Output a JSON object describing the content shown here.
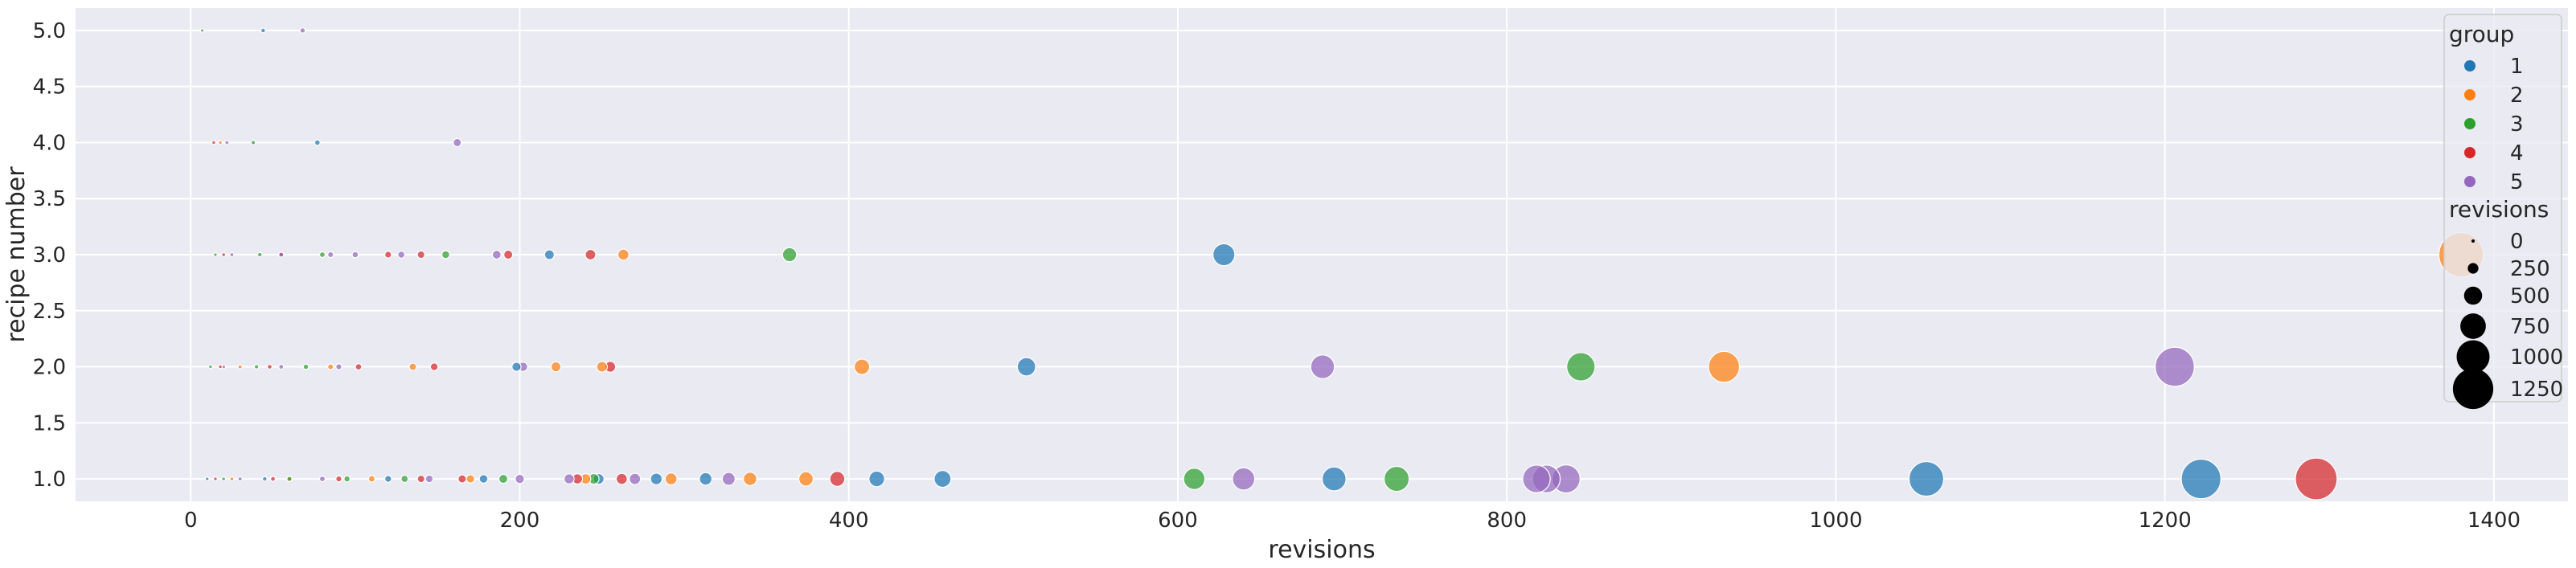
{
  "chart_data": {
    "type": "scatter",
    "title": "",
    "xlabel": "revisions",
    "ylabel": "recipe number",
    "xlim": [
      -70,
      1445
    ],
    "ylim": [
      0.8,
      5.2
    ],
    "xticks": [
      "0",
      "200",
      "400",
      "600",
      "800",
      "1000",
      "1200",
      "1400"
    ],
    "yticks": [
      "1.0",
      "1.5",
      "2.0",
      "2.5",
      "3.0",
      "3.5",
      "4.0",
      "4.5",
      "5.0"
    ],
    "grid": true,
    "legend": {
      "placement": "right",
      "hue_title": "group",
      "hue_entries": [
        {
          "label": "1",
          "color": "#1f77b4"
        },
        {
          "label": "2",
          "color": "#ff7f0e"
        },
        {
          "label": "3",
          "color": "#2ca02c"
        },
        {
          "label": "4",
          "color": "#d62728"
        },
        {
          "label": "5",
          "color": "#9467bd"
        }
      ],
      "size_title": "revisions",
      "size_entries": [
        "0",
        "250",
        "500",
        "750",
        "1000",
        "1250"
      ]
    },
    "series": [
      {
        "name": "1",
        "color": "#1f77b4",
        "points": [
          [
            44,
            5
          ],
          [
            77,
            4
          ],
          [
            218,
            3
          ],
          [
            628,
            3
          ],
          [
            198,
            2
          ],
          [
            508,
            2
          ],
          [
            10,
            1
          ],
          [
            45,
            1
          ],
          [
            120,
            1
          ],
          [
            178,
            1
          ],
          [
            248,
            1
          ],
          [
            283,
            1
          ],
          [
            313,
            1
          ],
          [
            417,
            1
          ],
          [
            457,
            1
          ],
          [
            695,
            1
          ],
          [
            1055,
            1
          ],
          [
            1222,
            1
          ]
        ]
      },
      {
        "name": "2",
        "color": "#ff7f0e",
        "points": [
          [
            18,
            4
          ],
          [
            263,
            3
          ],
          [
            1380,
            3
          ],
          [
            30,
            2
          ],
          [
            85,
            2
          ],
          [
            135,
            2
          ],
          [
            222,
            2
          ],
          [
            250,
            2
          ],
          [
            408,
            2
          ],
          [
            932,
            2
          ],
          [
            25,
            1
          ],
          [
            60,
            1
          ],
          [
            110,
            1
          ],
          [
            170,
            1
          ],
          [
            240,
            1
          ],
          [
            292,
            1
          ],
          [
            340,
            1
          ],
          [
            374,
            1
          ]
        ]
      },
      {
        "name": "3",
        "color": "#2ca02c",
        "points": [
          [
            7,
            5
          ],
          [
            38,
            4
          ],
          [
            15,
            3
          ],
          [
            42,
            3
          ],
          [
            80,
            3
          ],
          [
            155,
            3
          ],
          [
            364,
            3
          ],
          [
            12,
            2
          ],
          [
            40,
            2
          ],
          [
            70,
            2
          ],
          [
            845,
            2
          ],
          [
            20,
            1
          ],
          [
            60,
            1
          ],
          [
            95,
            1
          ],
          [
            130,
            1
          ],
          [
            190,
            1
          ],
          [
            245,
            1
          ],
          [
            610,
            1
          ],
          [
            733,
            1
          ]
        ]
      },
      {
        "name": "4",
        "color": "#d62728",
        "points": [
          [
            14,
            4
          ],
          [
            20,
            3
          ],
          [
            55,
            3
          ],
          [
            120,
            3
          ],
          [
            140,
            3
          ],
          [
            193,
            3
          ],
          [
            243,
            3
          ],
          [
            18,
            2
          ],
          [
            48,
            2
          ],
          [
            102,
            2
          ],
          [
            148,
            2
          ],
          [
            255,
            2
          ],
          [
            15,
            1
          ],
          [
            50,
            1
          ],
          [
            90,
            1
          ],
          [
            140,
            1
          ],
          [
            165,
            1
          ],
          [
            235,
            1
          ],
          [
            262,
            1
          ],
          [
            393,
            1
          ],
          [
            1292,
            1
          ]
        ]
      },
      {
        "name": "5",
        "color": "#9467bd",
        "points": [
          [
            68,
            5
          ],
          [
            22,
            4
          ],
          [
            162,
            4
          ],
          [
            25,
            3
          ],
          [
            55,
            3
          ],
          [
            85,
            3
          ],
          [
            100,
            3
          ],
          [
            128,
            3
          ],
          [
            186,
            3
          ],
          [
            20,
            2
          ],
          [
            55,
            2
          ],
          [
            90,
            2
          ],
          [
            202,
            2
          ],
          [
            688,
            2
          ],
          [
            1206,
            2
          ],
          [
            30,
            1
          ],
          [
            80,
            1
          ],
          [
            145,
            1
          ],
          [
            200,
            1
          ],
          [
            230,
            1
          ],
          [
            270,
            1
          ],
          [
            327,
            1
          ],
          [
            640,
            1
          ],
          [
            818,
            1
          ],
          [
            824,
            1
          ],
          [
            836,
            1
          ]
        ]
      }
    ]
  }
}
